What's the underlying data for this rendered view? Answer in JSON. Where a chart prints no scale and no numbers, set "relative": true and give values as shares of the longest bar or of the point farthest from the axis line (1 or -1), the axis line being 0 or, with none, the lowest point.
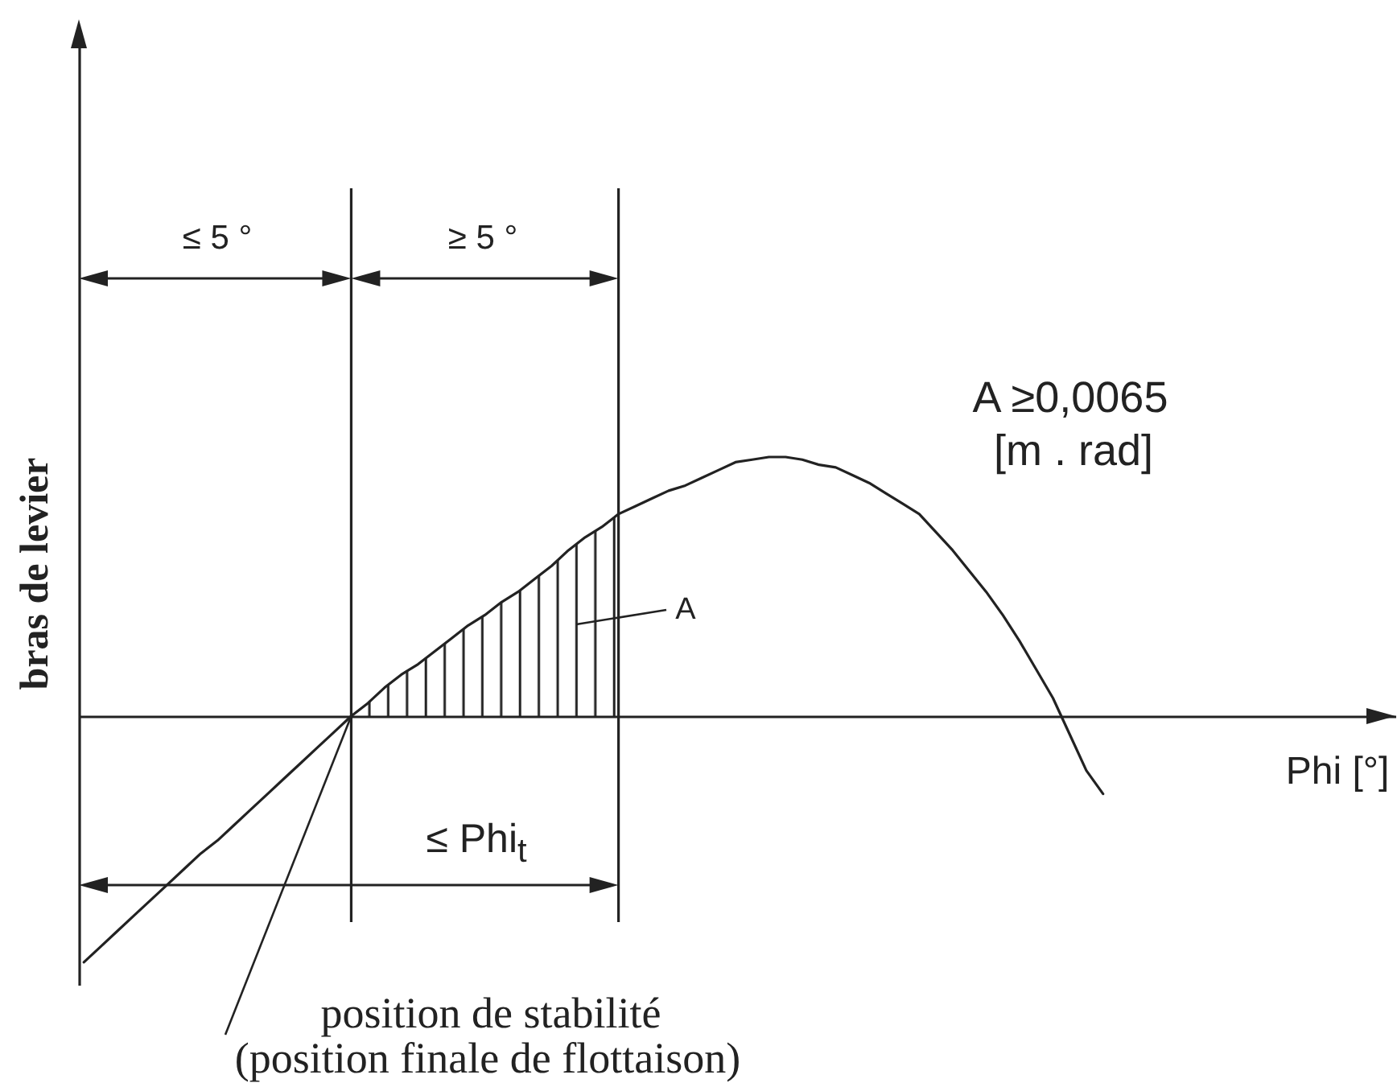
{
  "chart_data": {
    "type": "line",
    "relative": true,
    "ylabel": "bras de levier",
    "categories": [
      null,
      null,
      null,
      null,
      null,
      null,
      null,
      null,
      null,
      null,
      null,
      null,
      null,
      null,
      null,
      null,
      null,
      null,
      null,
      null,
      null,
      null,
      null,
      null,
      null,
      null,
      null,
      null,
      null,
      null,
      null,
      null,
      null,
      null,
      null,
      null,
      null,
      null,
      null,
      null,
      null,
      null,
      null,
      null,
      null,
      null,
      null,
      null,
      null,
      null,
      null,
      null,
      null,
      null,
      null,
      null,
      null,
      null,
      null,
      null,
      null,
      null
    ],
    "series": [
      {
        "type": "line",
        "color": "#222222",
        "values": [
          -0.95,
          -0.89,
          -0.83,
          -0.77,
          -0.71,
          -0.65,
          -0.59,
          -0.53,
          -0.48,
          -0.42,
          -0.36,
          -0.3,
          -0.24,
          -0.18,
          -0.12,
          -0.06,
          0,
          0.05,
          0.11,
          0.16,
          0.2,
          0.25,
          0.3,
          0.35,
          0.39,
          0.44,
          0.48,
          0.53,
          0.58,
          0.64,
          0.69,
          0.73,
          0.78,
          0.81,
          0.84,
          0.87,
          0.89,
          0.92,
          0.95,
          0.98,
          0.99,
          1,
          1,
          0.99,
          0.97,
          0.96,
          0.93,
          0.9,
          0.86,
          0.82,
          0.78,
          0.71,
          0.64,
          0.56,
          0.48,
          0.39,
          0.29,
          0.18,
          0.07,
          -0.07,
          -0.21,
          -0.3
        ]
      },
      {
        "type": "area",
        "color": "#222222",
        "values": [
          null,
          null,
          null,
          null,
          null,
          null,
          null,
          null,
          null,
          null,
          null,
          null,
          null,
          null,
          null,
          null,
          0,
          0.05,
          0.11,
          0.16,
          0.2,
          0.25,
          0.3,
          0.35,
          0.39,
          0.44,
          0.48,
          0.53,
          0.58,
          0.64,
          0.69,
          0.73,
          0.78,
          null,
          null,
          null,
          null,
          null,
          null,
          null,
          null,
          null,
          null,
          null,
          null,
          null,
          null,
          null,
          null,
          null,
          null,
          null,
          null,
          null,
          null,
          null,
          null,
          null,
          null,
          null,
          null,
          null
        ]
      }
    ],
    "annotations": [
      "≤ 5 °",
      "≥ 5 °",
      "A ≥0,0065",
      "[m . rad]",
      "A",
      "Phi [°]",
      "≤ Phi$_{t}$",
      "position de stabilité",
      "(position finale de flottaison)"
    ]
  }
}
